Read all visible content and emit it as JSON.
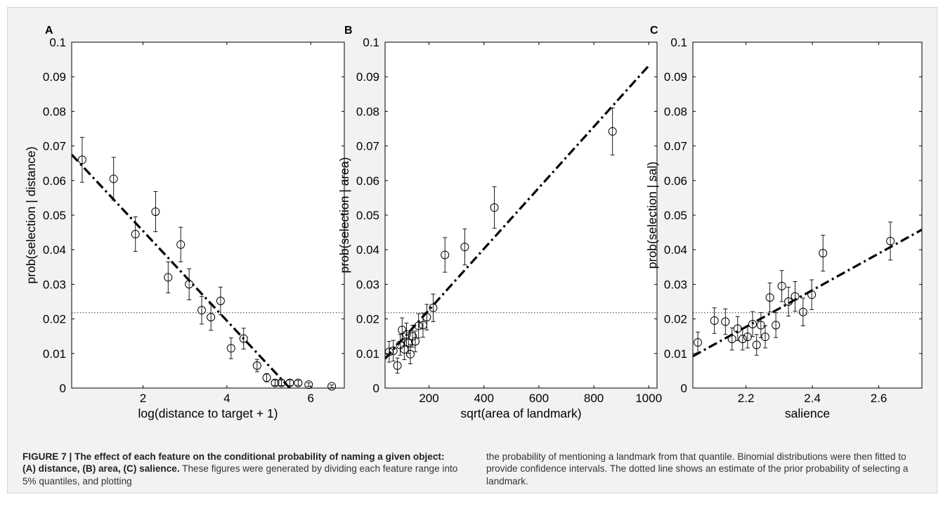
{
  "chart_data": [
    {
      "type": "scatter",
      "panel_label": "A",
      "xlabel": "log(distance to target + 1)",
      "ylabel": "prob(selection | distance)",
      "xlim": [
        0.3,
        6.8
      ],
      "ylim": [
        0,
        0.1
      ],
      "xticks": [
        2,
        4,
        6
      ],
      "yticks": [
        0,
        0.01,
        0.02,
        0.03,
        0.04,
        0.05,
        0.06,
        0.07,
        0.08,
        0.09,
        0.1
      ],
      "prior_line": 0.0218,
      "fit_line": [
        [
          0.3,
          0.0675
        ],
        [
          5.5,
          0.0
        ]
      ],
      "points": [
        {
          "x": 0.55,
          "y": 0.066,
          "err": 0.0065
        },
        {
          "x": 1.3,
          "y": 0.0605,
          "err": 0.0062
        },
        {
          "x": 1.82,
          "y": 0.0445,
          "err": 0.005
        },
        {
          "x": 2.3,
          "y": 0.051,
          "err": 0.0058
        },
        {
          "x": 2.6,
          "y": 0.032,
          "err": 0.0045
        },
        {
          "x": 2.9,
          "y": 0.0415,
          "err": 0.005
        },
        {
          "x": 3.1,
          "y": 0.03,
          "err": 0.0045
        },
        {
          "x": 3.4,
          "y": 0.0225,
          "err": 0.004
        },
        {
          "x": 3.62,
          "y": 0.0205,
          "err": 0.0038
        },
        {
          "x": 3.85,
          "y": 0.0252,
          "err": 0.004
        },
        {
          "x": 4.1,
          "y": 0.0115,
          "err": 0.003
        },
        {
          "x": 4.4,
          "y": 0.0143,
          "err": 0.003
        },
        {
          "x": 4.72,
          "y": 0.0065,
          "err": 0.0018
        },
        {
          "x": 4.95,
          "y": 0.003,
          "err": 0.0012
        },
        {
          "x": 5.15,
          "y": 0.0015,
          "err": 0.0008
        },
        {
          "x": 5.3,
          "y": 0.0015,
          "err": 0.0008
        },
        {
          "x": 5.5,
          "y": 0.0015,
          "err": 0.0008
        },
        {
          "x": 5.7,
          "y": 0.0015,
          "err": 0.0007
        },
        {
          "x": 5.95,
          "y": 0.001,
          "err": 0.0005
        },
        {
          "x": 6.5,
          "y": 0.0005,
          "err": 0.0004
        }
      ]
    },
    {
      "type": "scatter",
      "panel_label": "B",
      "xlabel": "sqrt(area of landmark)",
      "ylabel": "prob(selection | area)",
      "xlim": [
        40,
        1030
      ],
      "ylim": [
        0,
        0.1
      ],
      "xticks": [
        200,
        400,
        600,
        800,
        1000
      ],
      "yticks": [
        0,
        0.01,
        0.02,
        0.03,
        0.04,
        0.05,
        0.06,
        0.07,
        0.08,
        0.09,
        0.1
      ],
      "prior_line": 0.0218,
      "fit_line": [
        [
          40,
          0.0085
        ],
        [
          1000,
          0.0932
        ]
      ],
      "points": [
        {
          "x": 55,
          "y": 0.0105,
          "err": 0.003
        },
        {
          "x": 70,
          "y": 0.0108,
          "err": 0.003
        },
        {
          "x": 85,
          "y": 0.0065,
          "err": 0.0022
        },
        {
          "x": 95,
          "y": 0.0125,
          "err": 0.003
        },
        {
          "x": 102,
          "y": 0.0168,
          "err": 0.0035
        },
        {
          "x": 110,
          "y": 0.0112,
          "err": 0.003
        },
        {
          "x": 118,
          "y": 0.0155,
          "err": 0.0033
        },
        {
          "x": 125,
          "y": 0.013,
          "err": 0.003
        },
        {
          "x": 132,
          "y": 0.0098,
          "err": 0.0028
        },
        {
          "x": 140,
          "y": 0.015,
          "err": 0.0032
        },
        {
          "x": 150,
          "y": 0.0135,
          "err": 0.003
        },
        {
          "x": 162,
          "y": 0.018,
          "err": 0.0035
        },
        {
          "x": 178,
          "y": 0.0182,
          "err": 0.0035
        },
        {
          "x": 192,
          "y": 0.0205,
          "err": 0.0037
        },
        {
          "x": 215,
          "y": 0.0232,
          "err": 0.004
        },
        {
          "x": 258,
          "y": 0.0385,
          "err": 0.005
        },
        {
          "x": 330,
          "y": 0.0408,
          "err": 0.0052
        },
        {
          "x": 438,
          "y": 0.0522,
          "err": 0.006
        },
        {
          "x": 868,
          "y": 0.0742,
          "err": 0.0068
        }
      ]
    },
    {
      "type": "scatter",
      "panel_label": "C",
      "xlabel": "salience",
      "ylabel": "prob(selection | sal)",
      "xlim": [
        2.04,
        2.73
      ],
      "ylim": [
        0,
        0.1
      ],
      "xticks": [
        2.2,
        2.4,
        2.6
      ],
      "yticks": [
        0,
        0.01,
        0.02,
        0.03,
        0.04,
        0.05,
        0.06,
        0.07,
        0.08,
        0.09,
        0.1
      ],
      "prior_line": 0.0218,
      "fit_line": [
        [
          2.04,
          0.0092
        ],
        [
          2.73,
          0.0458
        ]
      ],
      "points": [
        {
          "x": 2.055,
          "y": 0.0132,
          "err": 0.003
        },
        {
          "x": 2.105,
          "y": 0.0195,
          "err": 0.0037
        },
        {
          "x": 2.138,
          "y": 0.0192,
          "err": 0.0037
        },
        {
          "x": 2.158,
          "y": 0.0142,
          "err": 0.0032
        },
        {
          "x": 2.175,
          "y": 0.0172,
          "err": 0.0035
        },
        {
          "x": 2.19,
          "y": 0.0142,
          "err": 0.0032
        },
        {
          "x": 2.205,
          "y": 0.0148,
          "err": 0.0032
        },
        {
          "x": 2.22,
          "y": 0.0185,
          "err": 0.0036
        },
        {
          "x": 2.232,
          "y": 0.0125,
          "err": 0.003
        },
        {
          "x": 2.245,
          "y": 0.0182,
          "err": 0.0036
        },
        {
          "x": 2.258,
          "y": 0.0148,
          "err": 0.0032
        },
        {
          "x": 2.272,
          "y": 0.0262,
          "err": 0.0042
        },
        {
          "x": 2.29,
          "y": 0.0182,
          "err": 0.0036
        },
        {
          "x": 2.308,
          "y": 0.0295,
          "err": 0.0045
        },
        {
          "x": 2.328,
          "y": 0.025,
          "err": 0.0042
        },
        {
          "x": 2.348,
          "y": 0.0265,
          "err": 0.0043
        },
        {
          "x": 2.372,
          "y": 0.022,
          "err": 0.004
        },
        {
          "x": 2.398,
          "y": 0.027,
          "err": 0.0043
        },
        {
          "x": 2.432,
          "y": 0.039,
          "err": 0.0052
        },
        {
          "x": 2.635,
          "y": 0.0425,
          "err": 0.0055
        }
      ]
    }
  ],
  "caption": {
    "title": "FIGURE 7 | The effect of each feature on the conditional probability of naming a given object: (A) distance, (B) area, (C) salience.",
    "col1_rest": " These figures were generated by dividing each feature range into 5% quantiles, and plotting",
    "col2": "the probability of mentioning a landmark from that quantile. Binomial distributions were then fitted to provide confidence intervals. The dotted line shows an estimate of the prior probability of selecting a landmark."
  }
}
